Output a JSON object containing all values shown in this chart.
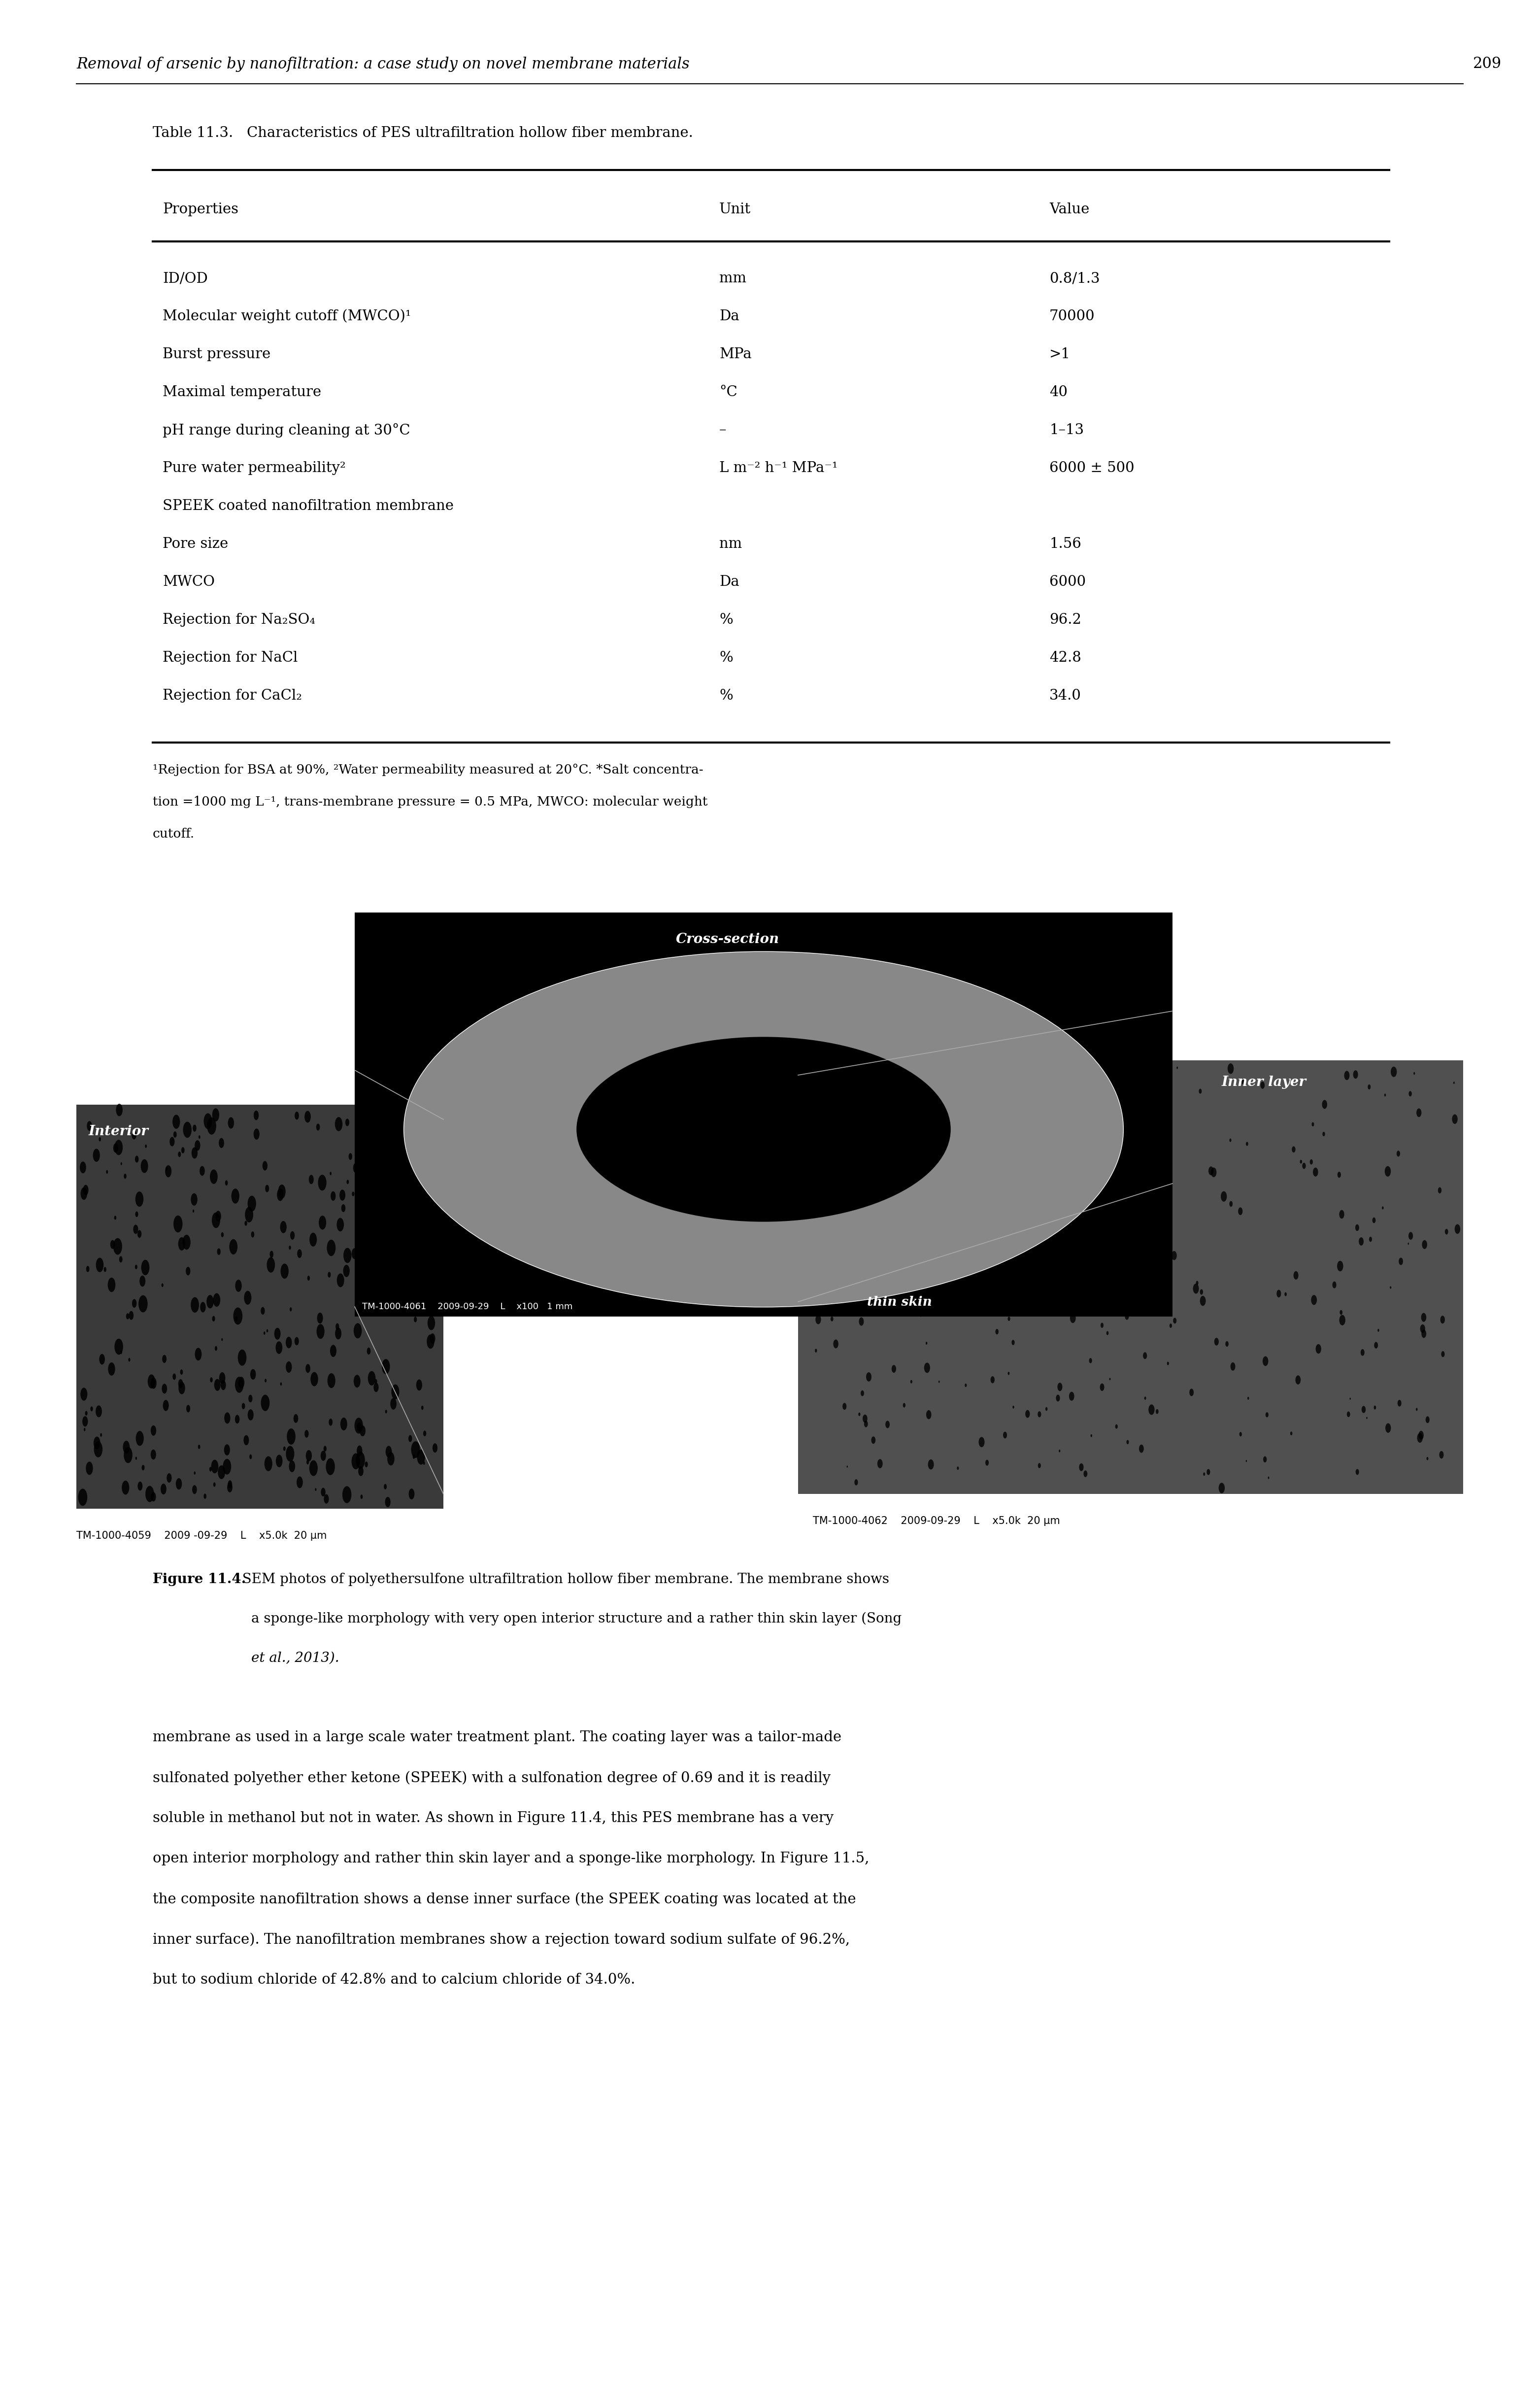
{
  "header_italic": "Removal of arsenic by nanofiltration: a case study on novel membrane materials",
  "page_number": "209",
  "table_title": "Table 11.3.   Characteristics of PES ultrafiltration hollow fiber membrane.",
  "col_headers": [
    "Properties",
    "Unit",
    "Value"
  ],
  "rows": [
    [
      "ID/OD",
      "mm",
      "0.8/1.3"
    ],
    [
      "Molecular weight cutoff (MWCO)¹",
      "Da",
      "70000"
    ],
    [
      "Burst pressure",
      "MPa",
      ">1"
    ],
    [
      "Maximal temperature",
      "°C",
      "40"
    ],
    [
      "pH range during cleaning at 30°C",
      "–",
      "1–13"
    ],
    [
      "Pure water permeability²",
      "L m⁻² h⁻¹ MPa⁻¹",
      "6000 ± 500"
    ],
    [
      "SPEEK coated nanofiltration membrane",
      "",
      ""
    ],
    [
      "Pore size",
      "nm",
      "1.56"
    ],
    [
      "MWCO",
      "Da",
      "6000"
    ],
    [
      "Rejection for Na₂SO₄",
      "%",
      "96.2"
    ],
    [
      "Rejection for NaCl",
      "%",
      "42.8"
    ],
    [
      "Rejection for CaCl₂",
      "%",
      "34.0"
    ]
  ],
  "footnote_lines": [
    "¹Rejection for BSA at 90%, ²Water permeability measured at 20°C. *Salt concentra-",
    "tion =1000 mg L⁻¹, trans-membrane pressure = 0.5 MPa, MWCO: molecular weight",
    "cutoff."
  ],
  "figure_caption_bold": "Figure 11.4.",
  "figure_caption_rest": "   SEM photos of polyethersulfone ultrafiltration hollow fiber membrane. The membrane shows",
  "figure_caption_line2": "a sponge-like morphology with very open interior structure and a rather thin skin layer (Song",
  "figure_caption_line3": "et al., 2013).",
  "body_text_lines": [
    "membrane as used in a large scale water treatment plant. The coating layer was a tailor-made",
    "sulfonated polyether ether ketone (SPEEK) with a sulfonation degree of 0.69 and it is readily",
    "soluble in methanol but not in water. As shown in Figure 11.4, this PES membrane has a very",
    "open interior morphology and rather thin skin layer and a sponge-like morphology. In Figure 11.5,",
    "the composite nanofiltration shows a dense inner surface (the SPEEK coating was located at the",
    "inner surface). The nanofiltration membranes show a rejection toward sodium sulfate of 96.2%,",
    "but to sodium chloride of 42.8% and to calcium chloride of 34.0%."
  ],
  "bg_color": "#ffffff",
  "text_color": "#000000",
  "header_fontsize": 22,
  "table_title_fontsize": 21,
  "col_header_fontsize": 21,
  "row_fontsize": 21,
  "footnote_fontsize": 19,
  "caption_fontsize": 20,
  "body_fontsize": 21,
  "meta_fontsize": 15,
  "sem_label_fontsize": 20
}
